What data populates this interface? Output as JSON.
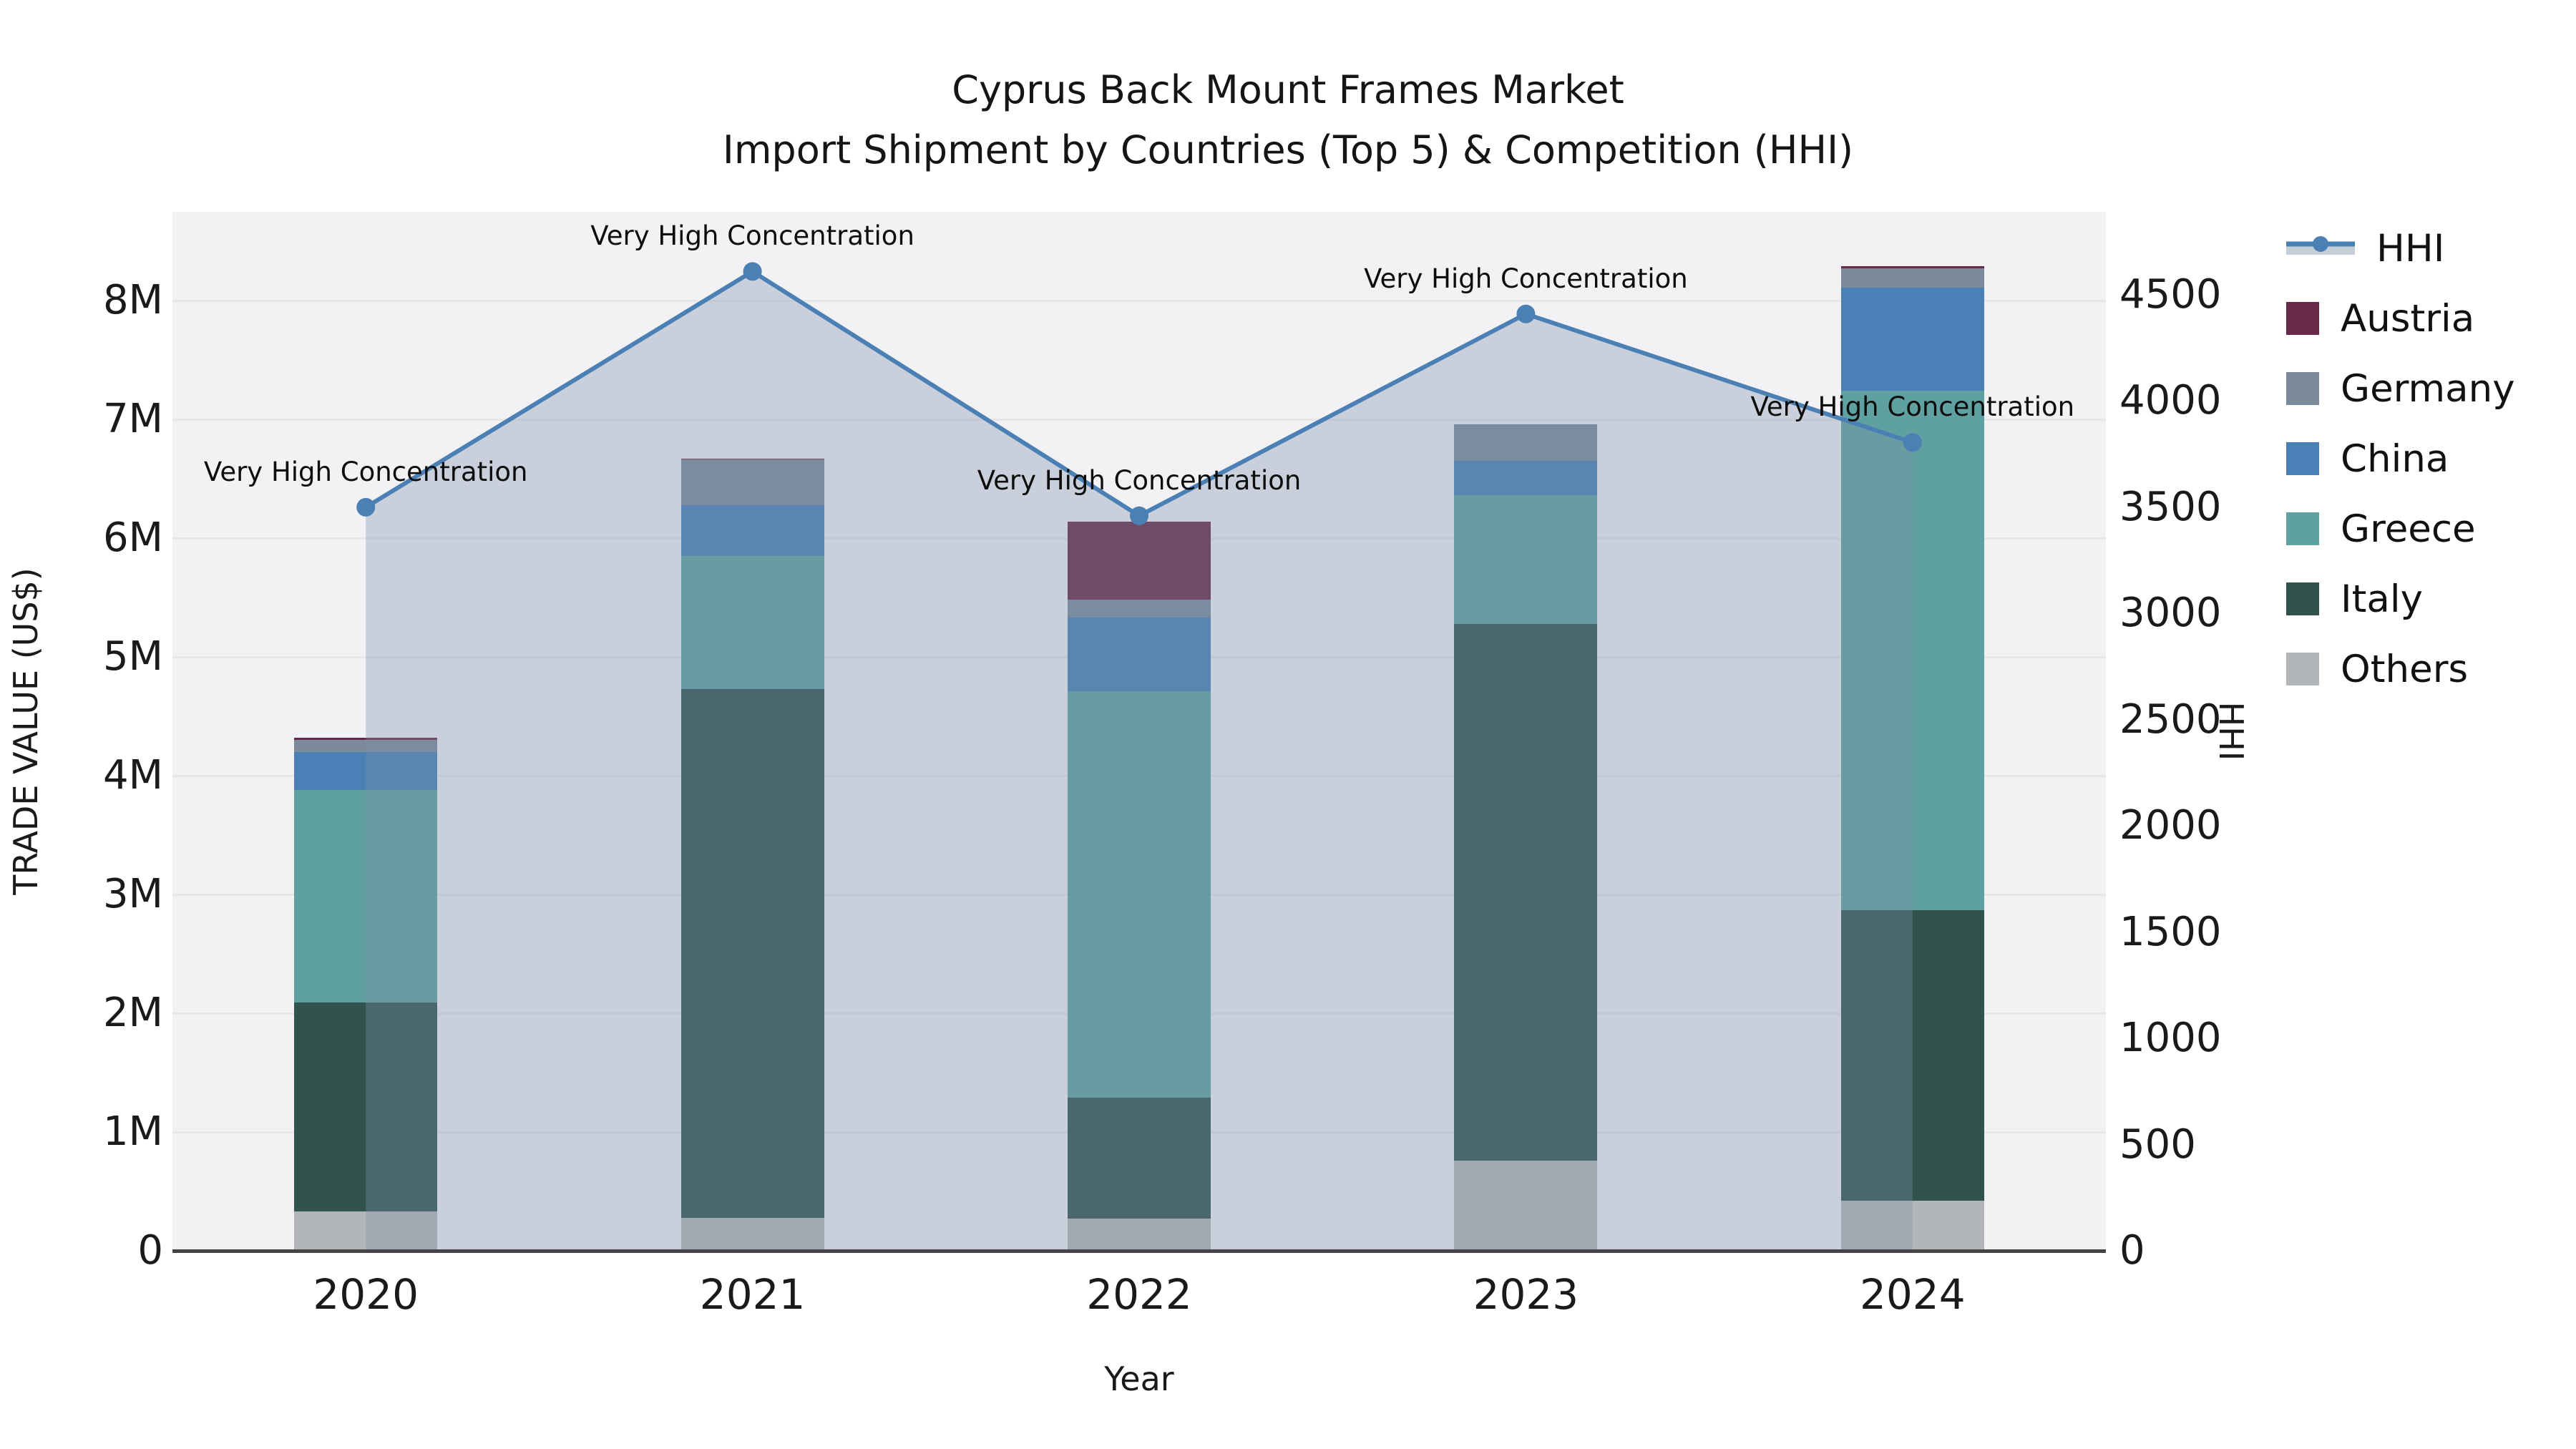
{
  "title": {
    "line1": "Cyprus Back Mount Frames Market",
    "line2": "Import Shipment by Countries (Top 5) & Competition (HHI)"
  },
  "axes": {
    "left_label": "TRADE VALUE (US$)",
    "right_label": "HHI",
    "x_label": "Year",
    "left_ticks": [
      "0",
      "1M",
      "2M",
      "3M",
      "4M",
      "5M",
      "6M",
      "7M",
      "8M"
    ],
    "right_ticks": [
      "0",
      "500",
      "1000",
      "1500",
      "2000",
      "2500",
      "3000",
      "3500",
      "4000",
      "4500"
    ]
  },
  "legend": {
    "items": [
      "HHI",
      "Austria",
      "Germany",
      "China",
      "Greece",
      "Italy",
      "Others"
    ]
  },
  "chart_data": {
    "type": "bar",
    "subtype": "stacked-bars-with-line-area",
    "categories": [
      "2020",
      "2021",
      "2022",
      "2023",
      "2024"
    ],
    "value_unit": "millions USD",
    "series": [
      {
        "name": "Austria",
        "color": "#682847",
        "values": [
          0.02,
          0.01,
          0.66,
          0.0,
          0.02
        ]
      },
      {
        "name": "Germany",
        "color": "#7C8B9B",
        "values": [
          0.1,
          0.38,
          0.15,
          0.31,
          0.16
        ]
      },
      {
        "name": "China",
        "color": "#4A80B5",
        "values": [
          0.32,
          0.43,
          0.62,
          0.29,
          0.87
        ]
      },
      {
        "name": "Greece",
        "color": "#5FA1A0",
        "values": [
          1.79,
          1.12,
          3.42,
          1.08,
          4.37
        ]
      },
      {
        "name": "Italy",
        "color": "#30534E",
        "values": [
          1.76,
          4.45,
          1.02,
          4.52,
          2.45
        ]
      },
      {
        "name": "Others",
        "color": "#B3B6B8",
        "values": [
          0.33,
          0.28,
          0.27,
          0.76,
          0.42
        ]
      }
    ],
    "stack_order_bottom_to_top": [
      "Others",
      "Italy",
      "Greece",
      "China",
      "Germany",
      "Austria"
    ],
    "bar_totals": [
      4.32,
      6.67,
      6.14,
      6.96,
      8.29
    ],
    "line_series": {
      "name": "HHI",
      "color": "#4A80B4",
      "area_fill": "#7F91A9",
      "area_opacity": 0.34,
      "values": [
        3500,
        4610,
        3460,
        4410,
        3805
      ]
    },
    "annotations": [
      "Very High Concentration",
      "Very High Concentration",
      "Very High Concentration",
      "Very High Concentration",
      "Very High Concentration"
    ],
    "title": "Cyprus Back Mount Frames Market — Import Shipment by Countries (Top 5) & Competition (HHI)",
    "xlabel": "Year",
    "ylabel_left": "TRADE VALUE (US$)",
    "ylabel_right": "HHI",
    "ylim_left": [
      0,
      8.75
    ],
    "ylim_right": [
      0,
      4890
    ],
    "grid": "horizontal-1M"
  },
  "colors": {
    "plot_background": "#f2f2f4",
    "gridline": "#e7e7ea",
    "axis_line": "#454545",
    "text": "#151515"
  }
}
